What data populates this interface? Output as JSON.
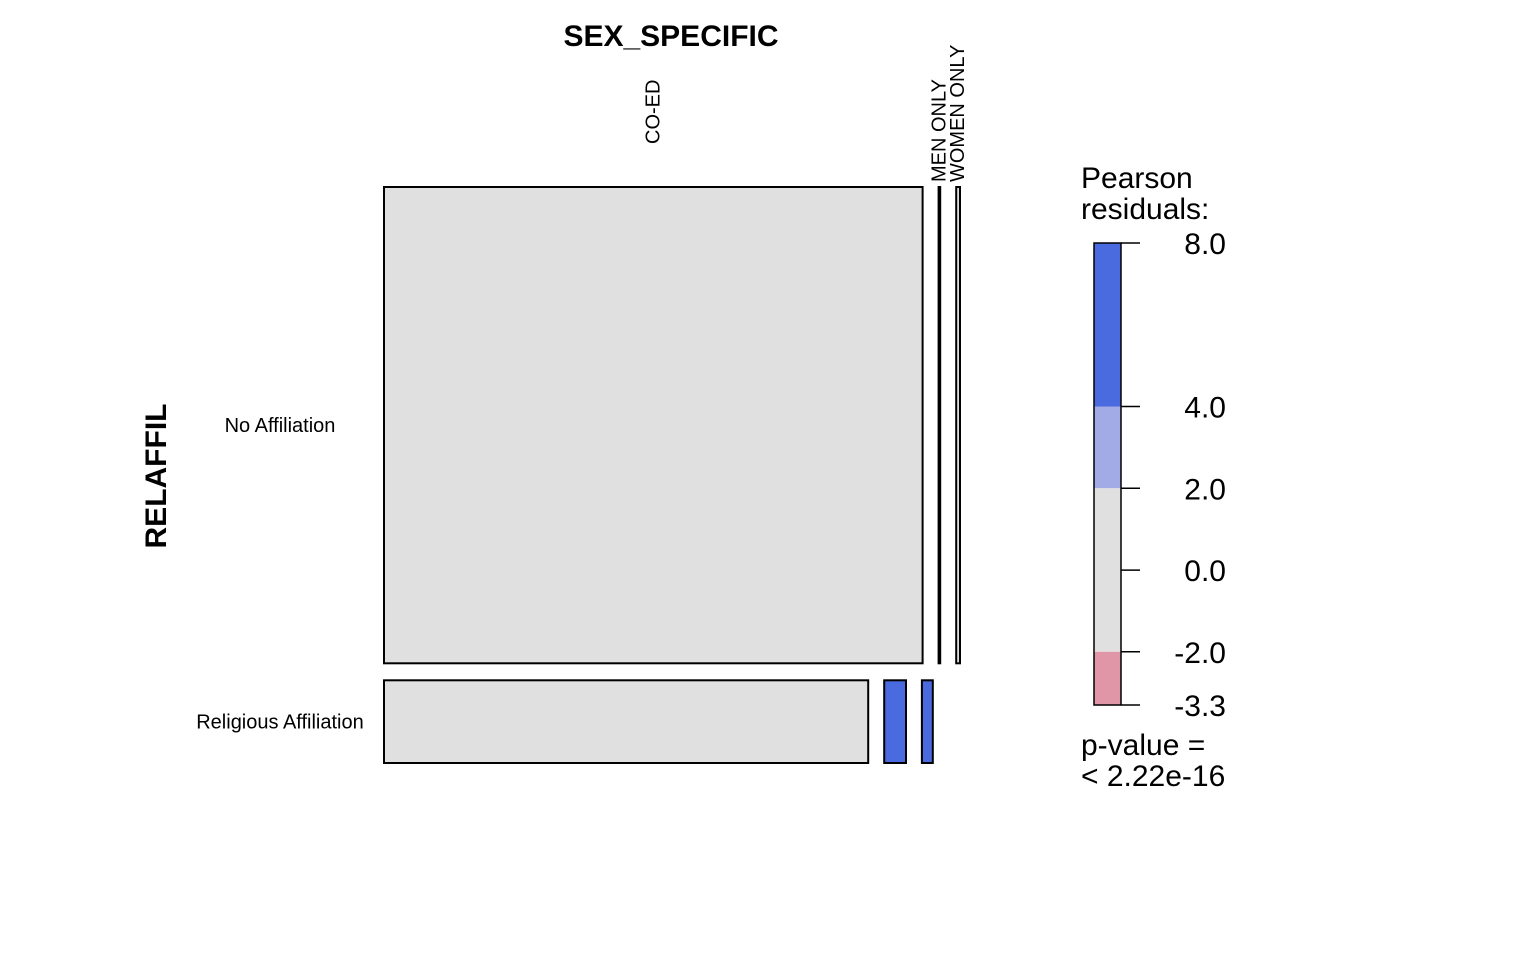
{
  "chart_data": {
    "type": "mosaic",
    "column_variable": "SEX_SPECIFIC",
    "row_variable": "RELAFFIL",
    "columns": [
      "CO-ED",
      "MEN ONLY",
      "WOMEN ONLY"
    ],
    "rows": [
      "No Affiliation",
      "Religious Affiliation"
    ],
    "row_proportions": [
      0.852,
      0.148
    ],
    "cells": [
      [
        {
          "column": "CO-ED",
          "proportion": 0.99,
          "residual": 0.7
        },
        {
          "column": "MEN ONLY",
          "proportion": 0.003,
          "residual": 0.0
        },
        {
          "column": "WOMEN ONLY",
          "proportion": 0.007,
          "residual": -1.0
        }
      ],
      [
        {
          "column": "CO-ED",
          "proportion": 0.89,
          "residual": -1.5
        },
        {
          "column": "MEN ONLY",
          "proportion": 0.04,
          "residual": 6.0
        },
        {
          "column": "WOMEN ONLY",
          "proportion": 0.02,
          "residual": 5.0
        }
      ]
    ],
    "legend": {
      "title_line1": "Pearson",
      "title_line2": "residuals:",
      "max": 8.0,
      "min": -3.3,
      "ticks": [
        "8.0",
        "4.0",
        "2.0",
        "0.0",
        "-2.0",
        "-3.3"
      ],
      "tick_values": [
        8.0,
        4.0,
        2.0,
        0.0,
        -2.0,
        -3.3
      ],
      "bands": [
        {
          "from": 4.0,
          "to": 8.0,
          "color": "#4a6ae0"
        },
        {
          "from": 2.0,
          "to": 4.0,
          "color": "#a2abe5"
        },
        {
          "from": -2.0,
          "to": 2.0,
          "color": "#e0e0e0"
        },
        {
          "from": -3.3,
          "to": -2.0,
          "color": "#e196a7"
        }
      ],
      "pvalue_line1": "p-value =",
      "pvalue_line2": "< 2.22e-16"
    }
  }
}
